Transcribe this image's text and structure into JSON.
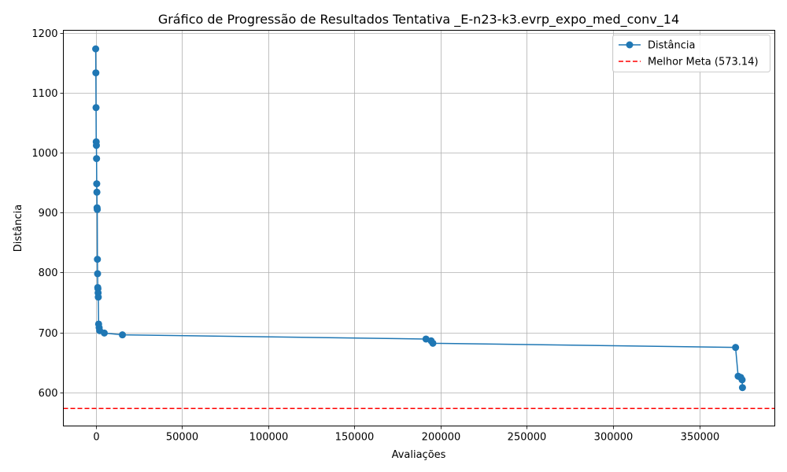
{
  "chart_data": {
    "type": "line",
    "title": "Gráfico de Progressão de Resultados Tentativa _E-n23-k3.evrp_expo_med_conv_14",
    "xlabel": "Avaliações",
    "ylabel": "Distância",
    "xlim": [
      -18750,
      393750
    ],
    "ylim": [
      544,
      1204
    ],
    "grid": true,
    "legend_position": "top-right",
    "x_ticks": [
      0,
      50000,
      100000,
      150000,
      200000,
      250000,
      300000,
      350000
    ],
    "y_ticks": [
      600,
      700,
      800,
      900,
      1000,
      1100,
      1200
    ],
    "series": [
      {
        "name": "Distância",
        "color": "#1f77b4",
        "marker": "circle",
        "x": [
          0,
          100,
          200,
          300,
          400,
          500,
          600,
          700,
          800,
          900,
          1000,
          1100,
          1200,
          1300,
          1400,
          1500,
          1700,
          2000,
          2300,
          5000,
          15500,
          191500,
          194500,
          195500,
          371000,
          372500,
          374000,
          374800,
          375000
        ],
        "y": [
          1173,
          1133,
          1075,
          1018,
          1012,
          990,
          948,
          934,
          908,
          905,
          822,
          798,
          775,
          773,
          766,
          759,
          714,
          708,
          703,
          699,
          696,
          689,
          686,
          682,
          675,
          627,
          625,
          621,
          608
        ]
      }
    ],
    "reference_line": {
      "name": "Melhor Meta (573.14)",
      "value": 573.14,
      "color": "#ff0000",
      "style": "dashed"
    }
  }
}
